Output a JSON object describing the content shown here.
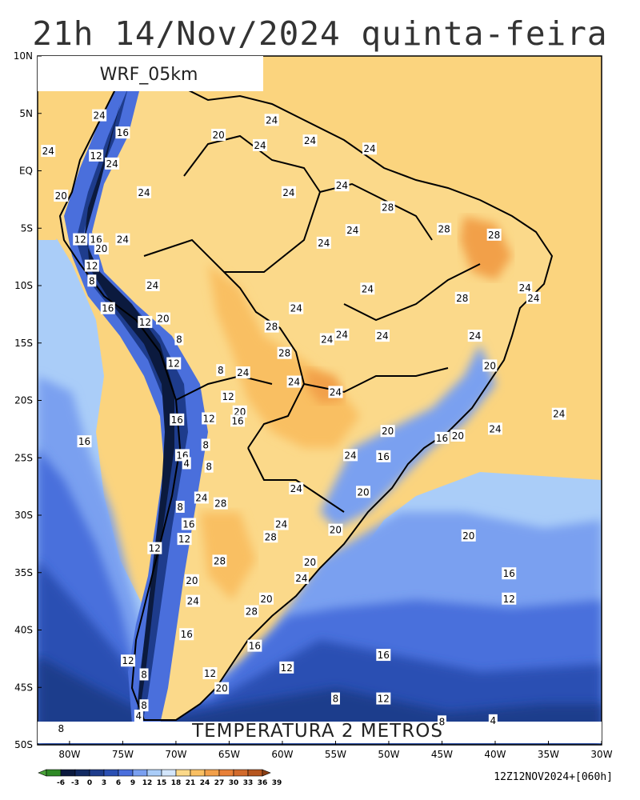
{
  "title": "21h 14/Nov/2024 quinta-feira",
  "model_label": "WRF_05km",
  "field_label": "TEMPERATURA 2 METROS",
  "run_label": "12Z12NOV2024+[060h]",
  "lat_labels": [
    "10N",
    "5N",
    "EQ",
    "5S",
    "10S",
    "15S",
    "20S",
    "25S",
    "30S",
    "35S",
    "40S",
    "45S",
    "50S"
  ],
  "lon_labels": [
    "80W",
    "75W",
    "70W",
    "65W",
    "60W",
    "55W",
    "50W",
    "45W",
    "40W",
    "35W",
    "30W"
  ],
  "colorbar": {
    "values": [
      "-6",
      "-3",
      "0",
      "3",
      "6",
      "9",
      "12",
      "15",
      "18",
      "21",
      "24",
      "27",
      "30",
      "33",
      "36",
      "39"
    ],
    "colors": [
      "#4aa33a",
      "#2f8a25",
      "#0b1a3e",
      "#122a62",
      "#1e3c8c",
      "#2b50b3",
      "#4a6fdc",
      "#7aa0f0",
      "#aacdf8",
      "#d3e6fb",
      "#fbd98a",
      "#f9bf62",
      "#f2a04a",
      "#e88038",
      "#d26a2c",
      "#b6561f",
      "#8a3f15"
    ]
  },
  "contour_labels": [
    {
      "t": "24",
      "lon": -77.2,
      "lat": 4.8
    },
    {
      "t": "16",
      "lon": -75.0,
      "lat": 3.3
    },
    {
      "t": "12",
      "lon": -77.5,
      "lat": 1.3
    },
    {
      "t": "24",
      "lon": -76.0,
      "lat": 0.6
    },
    {
      "t": "24",
      "lon": -82.0,
      "lat": 1.7
    },
    {
      "t": "20",
      "lon": -80.8,
      "lat": -2.2
    },
    {
      "t": "24",
      "lon": -73.0,
      "lat": -1.9
    },
    {
      "t": "12",
      "lon": -79.0,
      "lat": -6.0
    },
    {
      "t": "16",
      "lon": -77.5,
      "lat": -6.0
    },
    {
      "t": "20",
      "lon": -77.0,
      "lat": -6.8
    },
    {
      "t": "24",
      "lon": -75.0,
      "lat": -6.0
    },
    {
      "t": "12",
      "lon": -77.9,
      "lat": -8.3
    },
    {
      "t": "8",
      "lon": -77.9,
      "lat": -9.6
    },
    {
      "t": "16",
      "lon": -76.4,
      "lat": -12.0
    },
    {
      "t": "24",
      "lon": -72.2,
      "lat": -10.0
    },
    {
      "t": "12",
      "lon": -72.9,
      "lat": -13.2
    },
    {
      "t": "20",
      "lon": -71.2,
      "lat": -12.9
    },
    {
      "t": "8",
      "lon": -69.7,
      "lat": -14.7
    },
    {
      "t": "12",
      "lon": -70.2,
      "lat": -16.8
    },
    {
      "t": "8",
      "lon": -65.8,
      "lat": -17.4
    },
    {
      "t": "24",
      "lon": -63.7,
      "lat": -17.6
    },
    {
      "t": "12",
      "lon": -65.1,
      "lat": -19.7
    },
    {
      "t": "16",
      "lon": -69.9,
      "lat": -21.7
    },
    {
      "t": "12",
      "lon": -66.9,
      "lat": -21.6
    },
    {
      "t": "20",
      "lon": -64.0,
      "lat": -21.0
    },
    {
      "t": "16",
      "lon": -64.2,
      "lat": -21.8
    },
    {
      "t": "16",
      "lon": -78.6,
      "lat": -23.6
    },
    {
      "t": "8",
      "lon": -67.2,
      "lat": -23.9
    },
    {
      "t": "16",
      "lon": -69.4,
      "lat": -24.8
    },
    {
      "t": "4",
      "lon": -69.0,
      "lat": -25.5
    },
    {
      "t": "8",
      "lon": -66.9,
      "lat": -25.8
    },
    {
      "t": "24",
      "lon": -67.6,
      "lat": -28.5
    },
    {
      "t": "28",
      "lon": -65.8,
      "lat": -29.0
    },
    {
      "t": "8",
      "lon": -69.6,
      "lat": -29.3
    },
    {
      "t": "16",
      "lon": -68.8,
      "lat": -30.8
    },
    {
      "t": "12",
      "lon": -69.2,
      "lat": -32.1
    },
    {
      "t": "12",
      "lon": -72.0,
      "lat": -32.9
    },
    {
      "t": "28",
      "lon": -65.9,
      "lat": -34.0
    },
    {
      "t": "20",
      "lon": -68.5,
      "lat": -35.7
    },
    {
      "t": "24",
      "lon": -68.4,
      "lat": -37.5
    },
    {
      "t": "16",
      "lon": -69.0,
      "lat": -40.4
    },
    {
      "t": "28",
      "lon": -62.9,
      "lat": -38.4
    },
    {
      "t": "20",
      "lon": -61.5,
      "lat": -37.3
    },
    {
      "t": "16",
      "lon": -62.6,
      "lat": -41.4
    },
    {
      "t": "12",
      "lon": -74.5,
      "lat": -42.7
    },
    {
      "t": "12",
      "lon": -66.8,
      "lat": -43.8
    },
    {
      "t": "8",
      "lon": -73.0,
      "lat": -43.9
    },
    {
      "t": "20",
      "lon": -65.7,
      "lat": -45.1
    },
    {
      "t": "8",
      "lon": -73.0,
      "lat": -46.6
    },
    {
      "t": "4",
      "lon": -73.5,
      "lat": -47.5
    },
    {
      "t": "8",
      "lon": -80.8,
      "lat": -48.6
    },
    {
      "t": "20",
      "lon": -66.0,
      "lat": 3.1
    },
    {
      "t": "24",
      "lon": -61.0,
      "lat": 4.4
    },
    {
      "t": "24",
      "lon": -62.1,
      "lat": 2.2
    },
    {
      "t": "24",
      "lon": -57.4,
      "lat": 2.6
    },
    {
      "t": "24",
      "lon": -51.8,
      "lat": 1.9
    },
    {
      "t": "24",
      "lon": -59.4,
      "lat": -1.9
    },
    {
      "t": "24",
      "lon": -54.4,
      "lat": -1.3
    },
    {
      "t": "28",
      "lon": -50.1,
      "lat": -3.2
    },
    {
      "t": "24",
      "lon": -56.1,
      "lat": -6.3
    },
    {
      "t": "24",
      "lon": -53.4,
      "lat": -5.2
    },
    {
      "t": "28",
      "lon": -44.8,
      "lat": -5.1
    },
    {
      "t": "28",
      "lon": -40.1,
      "lat": -5.6
    },
    {
      "t": "24",
      "lon": -52.0,
      "lat": -10.3
    },
    {
      "t": "24",
      "lon": -37.2,
      "lat": -10.2
    },
    {
      "t": "24",
      "lon": -36.4,
      "lat": -11.1
    },
    {
      "t": "28",
      "lon": -43.1,
      "lat": -11.1
    },
    {
      "t": "24",
      "lon": -58.7,
      "lat": -12.0
    },
    {
      "t": "28",
      "lon": -61.0,
      "lat": -13.6
    },
    {
      "t": "24",
      "lon": -54.4,
      "lat": -14.3
    },
    {
      "t": "24",
      "lon": -50.6,
      "lat": -14.4
    },
    {
      "t": "24",
      "lon": -55.8,
      "lat": -14.7
    },
    {
      "t": "24",
      "lon": -41.9,
      "lat": -14.4
    },
    {
      "t": "28",
      "lon": -59.8,
      "lat": -15.9
    },
    {
      "t": "24",
      "lon": -58.9,
      "lat": -18.4
    },
    {
      "t": "20",
      "lon": -40.5,
      "lat": -17.0
    },
    {
      "t": "24",
      "lon": -55.0,
      "lat": -19.3
    },
    {
      "t": "20",
      "lon": -50.1,
      "lat": -22.7
    },
    {
      "t": "16",
      "lon": -45.0,
      "lat": -23.3
    },
    {
      "t": "20",
      "lon": -43.5,
      "lat": -23.1
    },
    {
      "t": "24",
      "lon": -40.0,
      "lat": -22.5
    },
    {
      "t": "24",
      "lon": -34.0,
      "lat": -21.2
    },
    {
      "t": "24",
      "lon": -53.6,
      "lat": -24.8
    },
    {
      "t": "16",
      "lon": -50.5,
      "lat": -24.9
    },
    {
      "t": "24",
      "lon": -58.7,
      "lat": -27.7
    },
    {
      "t": "20",
      "lon": -52.4,
      "lat": -28.0
    },
    {
      "t": "24",
      "lon": -60.1,
      "lat": -30.8
    },
    {
      "t": "20",
      "lon": -55.0,
      "lat": -31.3
    },
    {
      "t": "28",
      "lon": -61.1,
      "lat": -31.9
    },
    {
      "t": "20",
      "lon": -42.5,
      "lat": -31.8
    },
    {
      "t": "20",
      "lon": -57.4,
      "lat": -34.1
    },
    {
      "t": "24",
      "lon": -58.2,
      "lat": -35.5
    },
    {
      "t": "16",
      "lon": -38.7,
      "lat": -35.1
    },
    {
      "t": "12",
      "lon": -38.7,
      "lat": -37.3
    },
    {
      "t": "12",
      "lon": -59.6,
      "lat": -43.3
    },
    {
      "t": "16",
      "lon": -50.5,
      "lat": -42.2
    },
    {
      "t": "8",
      "lon": -55.0,
      "lat": -46.0
    },
    {
      "t": "12",
      "lon": -50.5,
      "lat": -46.0
    },
    {
      "t": "8",
      "lon": -45.0,
      "lat": -48.0
    },
    {
      "t": "4",
      "lon": -40.2,
      "lat": -47.9
    }
  ]
}
